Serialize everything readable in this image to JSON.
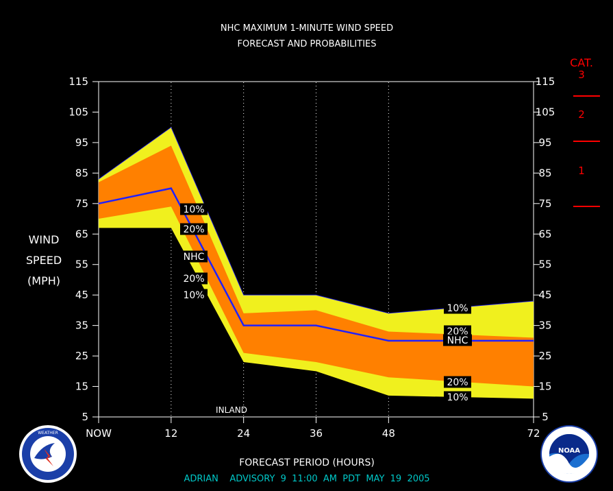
{
  "chart_data": {
    "type": "area",
    "title": "NHC MAXIMUM 1-MINUTE WIND SPEED",
    "subtitle": "FORECAST AND PROBABILITIES",
    "xlabel": "FORECAST PERIOD (HOURS)",
    "ylabel_lines": [
      "WIND",
      "SPEED",
      "(MPH)"
    ],
    "xlim": [
      0,
      72
    ],
    "ylim": [
      5,
      115
    ],
    "x_ticks": [
      {
        "x": 0,
        "label": "NOW"
      },
      {
        "x": 12,
        "label": "12"
      },
      {
        "x": 24,
        "label": "24"
      },
      {
        "x": 36,
        "label": "36"
      },
      {
        "x": 48,
        "label": "48"
      },
      {
        "x": 72,
        "label": "72"
      }
    ],
    "y_ticks": [
      5,
      15,
      25,
      35,
      45,
      55,
      65,
      75,
      85,
      95,
      105,
      115
    ],
    "x": [
      0,
      12,
      24,
      36,
      48,
      72
    ],
    "bands": {
      "p10_upper": [
        83,
        100,
        45,
        45,
        39,
        43
      ],
      "p20_upper": [
        82,
        94,
        39,
        40,
        33,
        31
      ],
      "nhc": [
        75,
        80,
        35,
        35,
        30,
        30
      ],
      "p20_lower": [
        70,
        74,
        26,
        23,
        18,
        15
      ],
      "p10_lower": [
        67,
        67,
        23,
        20,
        12,
        11
      ]
    },
    "labels": {
      "p10": "10%",
      "p20": "20%",
      "nhc": "NHC"
    },
    "annotation": "INLAND",
    "colors": {
      "outer_band": "#f0f01e",
      "inner_band": "#ff8000",
      "nhc_line": "#2020ff",
      "category": "#ff0000",
      "footer": "#00c8c8"
    },
    "categories": {
      "title": "CAT.",
      "items": [
        {
          "cat": "3",
          "threshold": 111
        },
        {
          "cat": "2",
          "threshold": 96
        },
        {
          "cat": "1",
          "threshold": 74
        }
      ]
    },
    "footer": "ADRIAN    ADVISORY  9  11:00  AM  PDT  MAY  19  2005"
  },
  "logos": {
    "left": "National Weather Service",
    "right": "NOAA"
  }
}
